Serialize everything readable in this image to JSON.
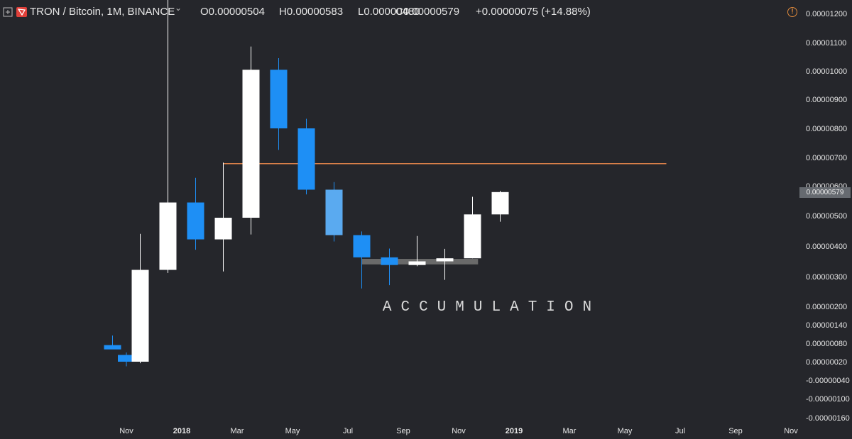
{
  "header": {
    "symbol": "TRON / Bitcoin, 1M, BINANCE",
    "open": "O0.00000504",
    "high": "H0.00000583",
    "low": "L0.00000480",
    "close": "C0.00000579",
    "change": "+0.00000075 (+14.88%)"
  },
  "colors": {
    "background": "#25262b",
    "up": "#ffffff",
    "down": "#1e8ff5",
    "hline": "#d9804a",
    "box": "#6e6e6e",
    "text": "#e6e6e6"
  },
  "chart_data": {
    "type": "candlestick",
    "time_labels": [
      {
        "label": "Nov",
        "bold": false,
        "m": 0
      },
      {
        "label": "2018",
        "bold": true,
        "m": 2
      },
      {
        "label": "Mar",
        "bold": false,
        "m": 4
      },
      {
        "label": "May",
        "bold": false,
        "m": 6
      },
      {
        "label": "Jul",
        "bold": false,
        "m": 8
      },
      {
        "label": "Sep",
        "bold": false,
        "m": 10
      },
      {
        "label": "Nov",
        "bold": false,
        "m": 12
      },
      {
        "label": "2019",
        "bold": true,
        "m": 14
      },
      {
        "label": "Mar",
        "bold": false,
        "m": 16
      },
      {
        "label": "May",
        "bold": false,
        "m": 18
      },
      {
        "label": "Jul",
        "bold": false,
        "m": 20
      },
      {
        "label": "Sep",
        "bold": false,
        "m": 22
      },
      {
        "label": "Nov",
        "bold": false,
        "m": 24
      }
    ],
    "price_labels": [
      {
        "label": "0.00001200",
        "v": 12.0
      },
      {
        "label": "0.00001100",
        "v": 11.0
      },
      {
        "label": "0.00001000",
        "v": 10.0
      },
      {
        "label": "0.00000900",
        "v": 9.0
      },
      {
        "label": "0.00000800",
        "v": 8.0
      },
      {
        "label": "0.00000700",
        "v": 7.0
      },
      {
        "label": "0.00000600",
        "v": 6.0
      },
      {
        "label": "0.00000500",
        "v": 5.0
      },
      {
        "label": "0.00000400",
        "v": 4.0
      },
      {
        "label": "0.00000300",
        "v": 3.0
      },
      {
        "label": "0.00000200",
        "v": 2.0
      },
      {
        "label": "0.00000140",
        "v": 1.4
      },
      {
        "label": "0.00000080",
        "v": 0.8
      },
      {
        "label": "0.00000020",
        "v": 0.2
      },
      {
        "label": "-0.00000040",
        "v": -0.4
      },
      {
        "label": "-0.00000100",
        "v": -1.0
      },
      {
        "label": "-0.00000160",
        "v": -1.6
      }
    ],
    "candles": [
      {
        "m": -0.5,
        "o": 0.74,
        "h": 1.05,
        "l": 0.62,
        "c": 0.6
      },
      {
        "m": 0.0,
        "o": 0.42,
        "h": 0.5,
        "l": 0.05,
        "c": 0.2
      },
      {
        "m": 0.5,
        "o": 0.2,
        "h": 4.4,
        "l": 0.15,
        "c": 3.22
      },
      {
        "m": 1.5,
        "o": 3.22,
        "h": 12.8,
        "l": 3.12,
        "c": 5.44
      },
      {
        "m": 2.5,
        "o": 5.44,
        "h": 6.28,
        "l": 3.88,
        "c": 4.22
      },
      {
        "m": 3.5,
        "o": 4.22,
        "h": 6.82,
        "l": 3.17,
        "c": 4.93
      },
      {
        "m": 4.5,
        "o": 4.93,
        "h": 10.86,
        "l": 4.38,
        "c": 10.04
      },
      {
        "m": 5.5,
        "o": 10.04,
        "h": 10.45,
        "l": 7.26,
        "c": 8.0
      },
      {
        "m": 6.5,
        "o": 8.0,
        "h": 8.33,
        "l": 5.71,
        "c": 5.87
      },
      {
        "m": 7.5,
        "o": 5.87,
        "h": 6.13,
        "l": 4.15,
        "c": 4.36
      },
      {
        "m": 8.5,
        "o": 4.36,
        "h": 4.48,
        "l": 2.6,
        "c": 3.63
      },
      {
        "m": 9.5,
        "o": 3.63,
        "h": 3.92,
        "l": 2.71,
        "c": 3.38
      },
      {
        "m": 10.5,
        "o": 3.38,
        "h": 4.33,
        "l": 3.34,
        "c": 3.5
      },
      {
        "m": 11.5,
        "o": 3.5,
        "h": 3.91,
        "l": 2.89,
        "c": 3.6
      },
      {
        "m": 12.5,
        "o": 3.6,
        "h": 5.63,
        "l": 3.6,
        "c": 5.04
      },
      {
        "m": 13.5,
        "o": 5.04,
        "h": 5.83,
        "l": 4.8,
        "c": 5.79
      }
    ],
    "hline": {
      "value": 6.78,
      "m_start": 3.5,
      "m_end": 19.5
    },
    "accumulation_box": {
      "m_start": 8.5,
      "m_end": 12.7,
      "v_top": 3.58,
      "v_bottom": 3.4
    },
    "annotation": {
      "text": "ACCUMULATION",
      "m": 11.5,
      "v": 1.95
    },
    "last_price": {
      "label": "0.00000579",
      "v": 5.79
    }
  }
}
